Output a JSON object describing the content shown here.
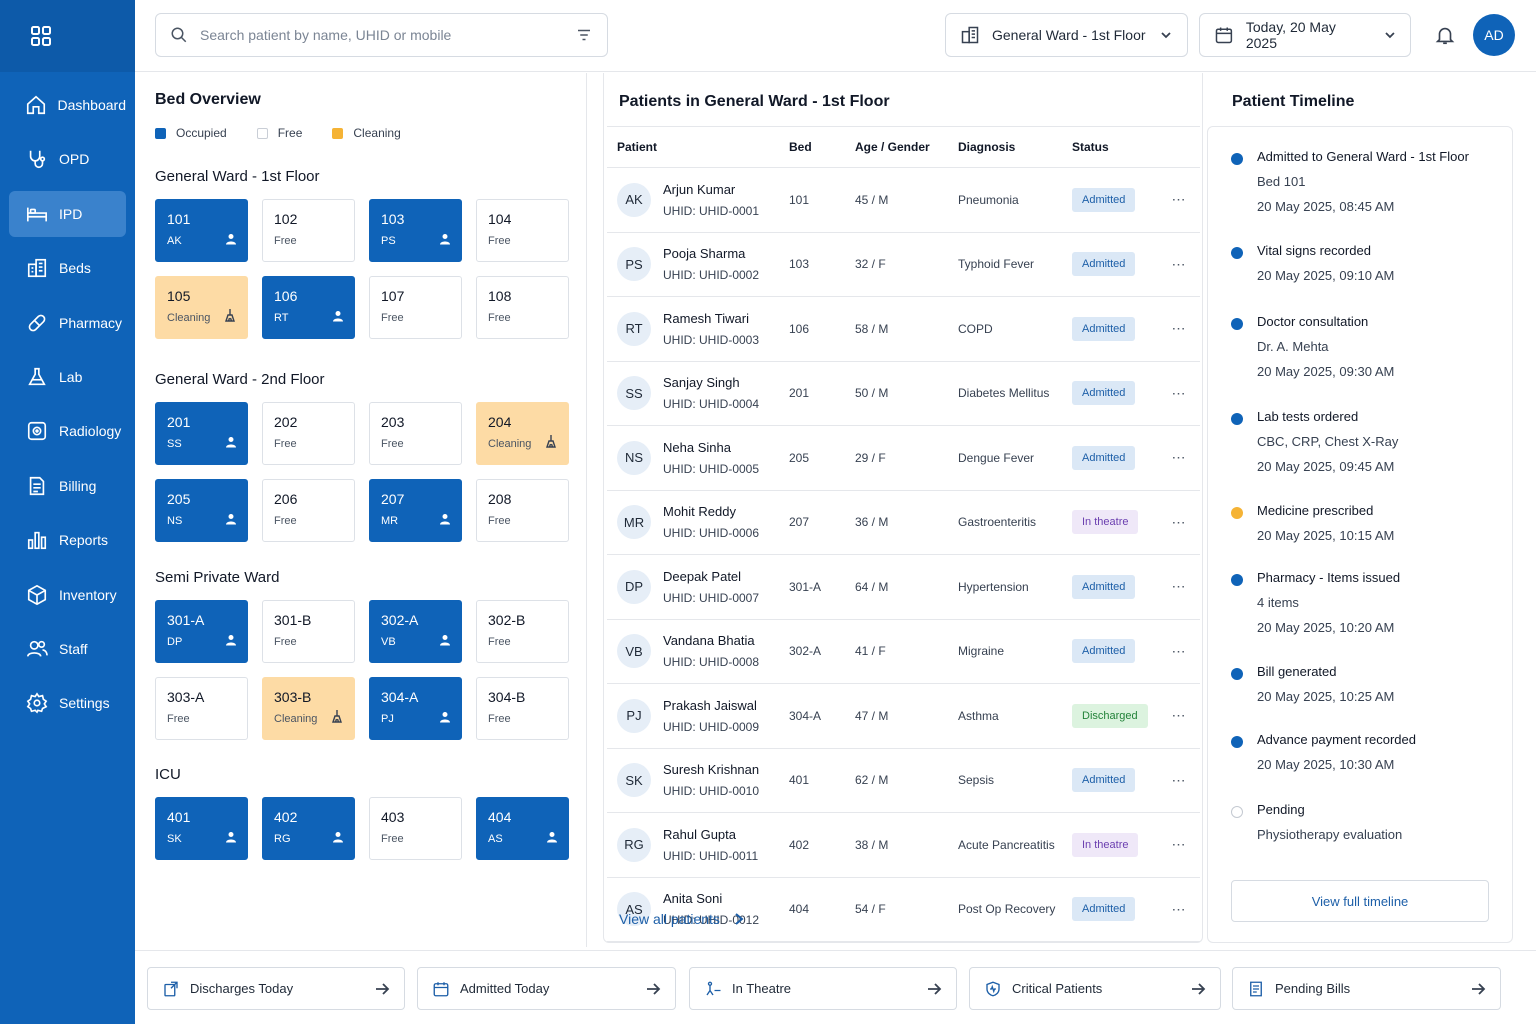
{
  "sidebar": {
    "items": [
      {
        "label": "Dashboard",
        "icon": "home-icon"
      },
      {
        "label": "OPD",
        "icon": "stethoscope-icon"
      },
      {
        "label": "IPD",
        "icon": "bed-icon"
      },
      {
        "label": "Beds",
        "icon": "building-icon"
      },
      {
        "label": "Pharmacy",
        "icon": "pill-icon"
      },
      {
        "label": "Lab",
        "icon": "flask-icon"
      },
      {
        "label": "Radiology",
        "icon": "radiology-icon"
      },
      {
        "label": "Billing",
        "icon": "document-icon"
      },
      {
        "label": "Reports",
        "icon": "bar-chart-icon"
      },
      {
        "label": "Inventory",
        "icon": "box-icon"
      },
      {
        "label": "Staff",
        "icon": "users-icon"
      },
      {
        "label": "Settings",
        "icon": "gear-icon"
      }
    ],
    "active": "IPD"
  },
  "header": {
    "search_placeholder": "Search patient by name, UHID or mobile",
    "ward_select": "General Ward - 1st Floor",
    "date_select": "Today, 20 May 2025",
    "avatar_initials": "AD"
  },
  "bed_overview": {
    "title": "Bed Overview",
    "legend": {
      "occupied": "Occupied",
      "free": "Free",
      "cleaning": "Cleaning"
    },
    "colors": {
      "occupied": "#0f63b8",
      "cleaning": "#fddba5",
      "free": "#ffffff"
    },
    "wards": [
      {
        "name": "General Ward - 1st Floor",
        "beds": [
          {
            "num": "101",
            "sub": "AK",
            "state": "occupied"
          },
          {
            "num": "102",
            "sub": "Free",
            "state": "free"
          },
          {
            "num": "103",
            "sub": "PS",
            "state": "occupied"
          },
          {
            "num": "104",
            "sub": "Free",
            "state": "free"
          },
          {
            "num": "105",
            "sub": "Cleaning",
            "state": "cleaning"
          },
          {
            "num": "106",
            "sub": "RT",
            "state": "occupied"
          },
          {
            "num": "107",
            "sub": "Free",
            "state": "free"
          },
          {
            "num": "108",
            "sub": "Free",
            "state": "free"
          }
        ]
      },
      {
        "name": "General Ward - 2nd Floor",
        "beds": [
          {
            "num": "201",
            "sub": "SS",
            "state": "occupied"
          },
          {
            "num": "202",
            "sub": "Free",
            "state": "free"
          },
          {
            "num": "203",
            "sub": "Free",
            "state": "free"
          },
          {
            "num": "204",
            "sub": "Cleaning",
            "state": "cleaning"
          },
          {
            "num": "205",
            "sub": "NS",
            "state": "occupied"
          },
          {
            "num": "206",
            "sub": "Free",
            "state": "free"
          },
          {
            "num": "207",
            "sub": "MR",
            "state": "occupied"
          },
          {
            "num": "208",
            "sub": "Free",
            "state": "free"
          }
        ]
      },
      {
        "name": "Semi Private Ward",
        "beds": [
          {
            "num": "301-A",
            "sub": "DP",
            "state": "occupied"
          },
          {
            "num": "301-B",
            "sub": "Free",
            "state": "free"
          },
          {
            "num": "302-A",
            "sub": "VB",
            "state": "occupied"
          },
          {
            "num": "302-B",
            "sub": "Free",
            "state": "free"
          },
          {
            "num": "303-A",
            "sub": "Free",
            "state": "free"
          },
          {
            "num": "303-B",
            "sub": "Cleaning",
            "state": "cleaning"
          },
          {
            "num": "304-A",
            "sub": "PJ",
            "state": "occupied"
          },
          {
            "num": "304-B",
            "sub": "Free",
            "state": "free"
          }
        ]
      },
      {
        "name": "ICU",
        "beds": [
          {
            "num": "401",
            "sub": "SK",
            "state": "occupied"
          },
          {
            "num": "402",
            "sub": "RG",
            "state": "occupied"
          },
          {
            "num": "403",
            "sub": "Free",
            "state": "free"
          },
          {
            "num": "404",
            "sub": "AS",
            "state": "occupied"
          }
        ]
      }
    ]
  },
  "patients": {
    "title": "Patients in General Ward - 1st Floor",
    "columns": [
      "Patient",
      "Bed",
      "Age / Gender",
      "Diagnosis",
      "Status"
    ],
    "rows": [
      {
        "ini": "AK",
        "name": "Arjun Kumar",
        "uhid": "UHID: UHID-0001",
        "bed": "101",
        "age": "45 / M",
        "diagnosis": "Pneumonia",
        "status": "Admitted"
      },
      {
        "ini": "PS",
        "name": "Pooja Sharma",
        "uhid": "UHID: UHID-0002",
        "bed": "103",
        "age": "32 / F",
        "diagnosis": "Typhoid Fever",
        "status": "Admitted"
      },
      {
        "ini": "RT",
        "name": "Ramesh Tiwari",
        "uhid": "UHID: UHID-0003",
        "bed": "106",
        "age": "58 / M",
        "diagnosis": "COPD",
        "status": "Admitted"
      },
      {
        "ini": "SS",
        "name": "Sanjay Singh",
        "uhid": "UHID: UHID-0004",
        "bed": "201",
        "age": "50 / M",
        "diagnosis": "Diabetes Mellitus",
        "status": "Admitted"
      },
      {
        "ini": "NS",
        "name": "Neha Sinha",
        "uhid": "UHID: UHID-0005",
        "bed": "205",
        "age": "29 / F",
        "diagnosis": "Dengue Fever",
        "status": "Admitted"
      },
      {
        "ini": "MR",
        "name": "Mohit Reddy",
        "uhid": "UHID: UHID-0006",
        "bed": "207",
        "age": "36 / M",
        "diagnosis": "Gastroenteritis",
        "status": "In theatre"
      },
      {
        "ini": "DP",
        "name": "Deepak Patel",
        "uhid": "UHID: UHID-0007",
        "bed": "301-A",
        "age": "64 / M",
        "diagnosis": "Hypertension",
        "status": "Admitted"
      },
      {
        "ini": "VB",
        "name": "Vandana Bhatia",
        "uhid": "UHID: UHID-0008",
        "bed": "302-A",
        "age": "41 / F",
        "diagnosis": "Migraine",
        "status": "Admitted"
      },
      {
        "ini": "PJ",
        "name": "Prakash Jaiswal",
        "uhid": "UHID: UHID-0009",
        "bed": "304-A",
        "age": "47 / M",
        "diagnosis": "Asthma",
        "status": "Discharged"
      },
      {
        "ini": "SK",
        "name": "Suresh Krishnan",
        "uhid": "UHID: UHID-0010",
        "bed": "401",
        "age": "62 / M",
        "diagnosis": "Sepsis",
        "status": "Admitted"
      },
      {
        "ini": "RG",
        "name": "Rahul Gupta",
        "uhid": "UHID: UHID-0011",
        "bed": "402",
        "age": "38 / M",
        "diagnosis": "Acute Pancreatitis",
        "status": "In theatre"
      },
      {
        "ini": "AS",
        "name": "Anita Soni",
        "uhid": "UHID: UHID-0012",
        "bed": "404",
        "age": "54 / F",
        "diagnosis": "Post Op Recovery",
        "status": "Admitted"
      }
    ],
    "view_all": "View all patients"
  },
  "timeline": {
    "title": "Patient Timeline",
    "items": [
      {
        "text": "Admitted to General Ward - 1st Floor",
        "subs": [
          "Bed 101",
          "20 May 2025, 08:45 AM"
        ],
        "dot": "blue"
      },
      {
        "text": "Vital signs recorded",
        "subs": [
          "20 May 2025, 09:10 AM"
        ],
        "dot": "blue"
      },
      {
        "text": "Doctor consultation",
        "subs": [
          "Dr. A. Mehta",
          "20 May 2025, 09:30 AM"
        ],
        "dot": "blue"
      },
      {
        "text": "Lab tests ordered",
        "subs": [
          "CBC, CRP, Chest X-Ray",
          "20 May 2025, 09:45 AM"
        ],
        "dot": "blue"
      },
      {
        "text": "Medicine prescribed",
        "subs": [
          "20 May 2025, 10:15 AM"
        ],
        "dot": "orange"
      },
      {
        "text": "Pharmacy - Items issued",
        "subs": [
          "4 items",
          "20 May 2025, 10:20 AM"
        ],
        "dot": "blue"
      },
      {
        "text": "Bill generated",
        "subs": [
          "20 May 2025, 10:25 AM"
        ],
        "dot": "blue"
      },
      {
        "text": "Advance payment recorded",
        "subs": [
          "20 May 2025, 10:30 AM"
        ],
        "dot": "blue"
      },
      {
        "text": "Pending",
        "subs": [
          "Physiotherapy evaluation"
        ],
        "dot": "empty"
      }
    ],
    "button": "View full timeline"
  },
  "quick_actions": [
    {
      "label": "Discharges Today",
      "icon": "discharge-icon"
    },
    {
      "label": "Admitted Today",
      "icon": "calendar-icon"
    },
    {
      "label": "In Theatre",
      "icon": "theatre-icon"
    },
    {
      "label": "Critical Patients",
      "icon": "critical-icon"
    },
    {
      "label": "Pending Bills",
      "icon": "bill-icon"
    }
  ]
}
